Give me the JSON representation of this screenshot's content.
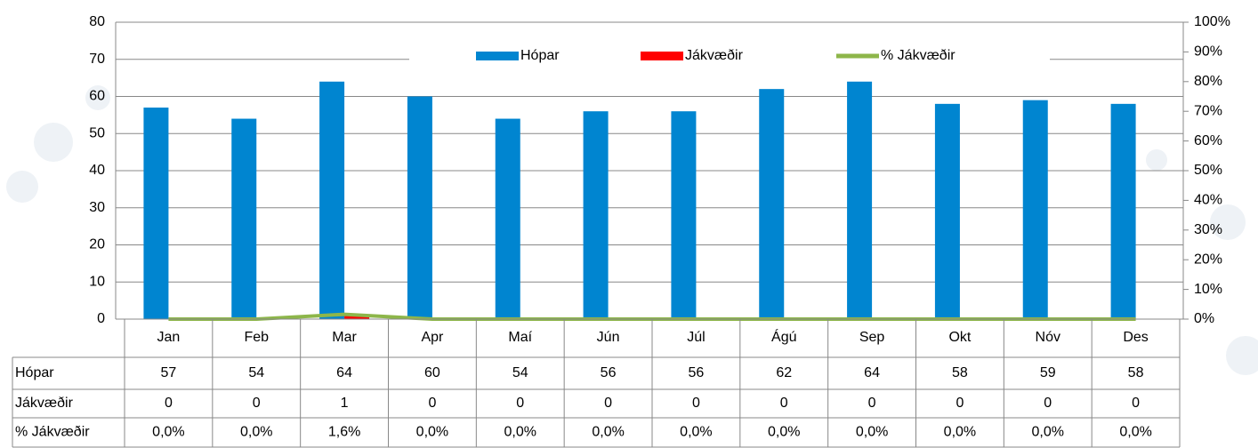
{
  "chart_data": {
    "type": "bar",
    "categories": [
      "Jan",
      "Feb",
      "Mar",
      "Apr",
      "Maí",
      "Jún",
      "Júl",
      "Ágú",
      "Sep",
      "Okt",
      "Nóv",
      "Des"
    ],
    "series": [
      {
        "name": "Hópar",
        "color": "#0085d0",
        "values": [
          57,
          54,
          64,
          60,
          54,
          56,
          56,
          62,
          64,
          58,
          59,
          58
        ]
      },
      {
        "name": "Jákvæðir",
        "color": "#ff0000",
        "values": [
          0,
          0,
          1,
          0,
          0,
          0,
          0,
          0,
          0,
          0,
          0,
          0
        ]
      },
      {
        "name": "% Jákvæðir",
        "color": "#8db64a",
        "type": "line",
        "axis": "y2",
        "values": [
          0,
          0,
          1.6,
          0,
          0,
          0,
          0,
          0,
          0,
          0,
          0,
          0
        ],
        "value_labels": [
          "0,0%",
          "0,0%",
          "1,6%",
          "0,0%",
          "0,0%",
          "0,0%",
          "0,0%",
          "0,0%",
          "0,0%",
          "0,0%",
          "0,0%",
          "0,0%"
        ]
      }
    ],
    "ylim": [
      0,
      80
    ],
    "yticks": [
      0,
      10,
      20,
      30,
      40,
      50,
      60,
      70,
      80
    ],
    "y2lim": [
      0,
      100
    ],
    "y2ticks": [
      {
        "value": 0,
        "label": "0%"
      },
      {
        "value": 10,
        "label": "10%"
      },
      {
        "value": 20,
        "label": "20%"
      },
      {
        "value": 30,
        "label": "30%"
      },
      {
        "value": 40,
        "label": "40%"
      },
      {
        "value": 50,
        "label": "50%"
      },
      {
        "value": 60,
        "label": "60%"
      },
      {
        "value": 70,
        "label": "70%"
      },
      {
        "value": 80,
        "label": "80%"
      },
      {
        "value": 90,
        "label": "90%"
      },
      {
        "value": 100,
        "label": "100%"
      }
    ],
    "grid": true,
    "legend": "top",
    "data_table": true
  }
}
